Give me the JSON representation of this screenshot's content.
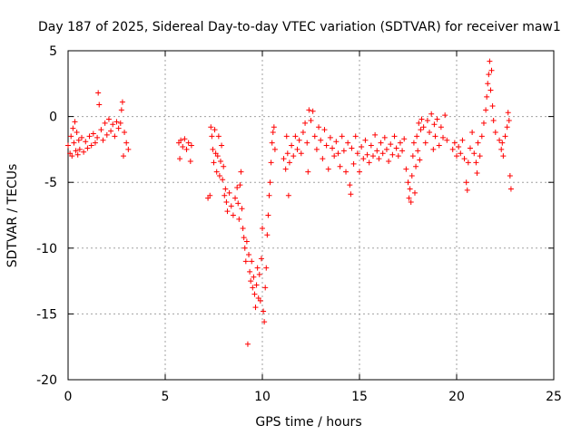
{
  "chart_data": {
    "type": "scatter",
    "title": "Day 187 of 2025, Sidereal Day-to-day VTEC variation (SDTVAR) for receiver maw1",
    "xlabel": "GPS time / hours",
    "ylabel": "SDTVAR / TECUs",
    "xlim": [
      0,
      25
    ],
    "ylim": [
      -20,
      5
    ],
    "xticks": [
      0,
      5,
      10,
      15,
      20,
      25
    ],
    "yticks": [
      5,
      0,
      -5,
      -10,
      -15,
      -20
    ],
    "grid": true,
    "marker": "plus",
    "color": "#ff0000",
    "series": [
      {
        "name": "maw1",
        "points": [
          [
            0.0,
            -2.2
          ],
          [
            0.1,
            -2.8
          ],
          [
            0.15,
            -1.5
          ],
          [
            0.2,
            -3.0
          ],
          [
            0.25,
            -0.9
          ],
          [
            0.3,
            -2.0
          ],
          [
            0.35,
            -0.4
          ],
          [
            0.4,
            -2.6
          ],
          [
            0.45,
            -1.2
          ],
          [
            0.5,
            -2.9
          ],
          [
            0.55,
            -1.8
          ],
          [
            0.6,
            -2.5
          ],
          [
            0.7,
            -1.6
          ],
          [
            0.8,
            -2.7
          ],
          [
            0.9,
            -1.9
          ],
          [
            1.0,
            -2.4
          ],
          [
            1.1,
            -1.5
          ],
          [
            1.2,
            -2.2
          ],
          [
            1.3,
            -1.3
          ],
          [
            1.4,
            -2.0
          ],
          [
            1.5,
            -1.6
          ],
          [
            1.55,
            1.8
          ],
          [
            1.6,
            0.9
          ],
          [
            1.7,
            -1.0
          ],
          [
            1.8,
            -1.8
          ],
          [
            1.9,
            -0.5
          ],
          [
            2.0,
            -1.4
          ],
          [
            2.1,
            -0.2
          ],
          [
            2.2,
            -1.1
          ],
          [
            2.3,
            -0.6
          ],
          [
            2.4,
            -1.5
          ],
          [
            2.5,
            -0.4
          ],
          [
            2.6,
            -0.9
          ],
          [
            2.7,
            -0.5
          ],
          [
            2.75,
            0.5
          ],
          [
            2.8,
            1.1
          ],
          [
            2.85,
            -3.0
          ],
          [
            2.9,
            -1.2
          ],
          [
            3.0,
            -2.0
          ],
          [
            3.1,
            -2.5
          ],
          [
            5.7,
            -2.0
          ],
          [
            5.75,
            -3.2
          ],
          [
            5.8,
            -1.8
          ],
          [
            5.9,
            -2.3
          ],
          [
            6.0,
            -1.7
          ],
          [
            6.1,
            -2.5
          ],
          [
            6.2,
            -2.0
          ],
          [
            6.3,
            -3.4
          ],
          [
            6.35,
            -2.2
          ],
          [
            7.2,
            -6.2
          ],
          [
            7.3,
            -6.0
          ],
          [
            7.35,
            -0.8
          ],
          [
            7.4,
            -1.5
          ],
          [
            7.45,
            -2.5
          ],
          [
            7.5,
            -3.5
          ],
          [
            7.55,
            -1.0
          ],
          [
            7.6,
            -2.8
          ],
          [
            7.65,
            -4.2
          ],
          [
            7.7,
            -3.0
          ],
          [
            7.75,
            -1.5
          ],
          [
            7.8,
            -4.5
          ],
          [
            7.85,
            -3.4
          ],
          [
            7.9,
            -2.2
          ],
          [
            7.95,
            -4.8
          ],
          [
            8.0,
            -3.8
          ],
          [
            8.05,
            -6.0
          ],
          [
            8.1,
            -5.5
          ],
          [
            8.15,
            -6.5
          ],
          [
            8.2,
            -7.2
          ],
          [
            8.3,
            -5.8
          ],
          [
            8.4,
            -6.8
          ],
          [
            8.5,
            -7.5
          ],
          [
            8.6,
            -6.2
          ],
          [
            8.7,
            -5.4
          ],
          [
            8.75,
            -6.6
          ],
          [
            8.8,
            -7.8
          ],
          [
            8.85,
            -5.2
          ],
          [
            8.9,
            -4.2
          ],
          [
            8.95,
            -7.0
          ],
          [
            9.0,
            -8.5
          ],
          [
            9.05,
            -9.2
          ],
          [
            9.1,
            -10.0
          ],
          [
            9.15,
            -11.0
          ],
          [
            9.2,
            -9.5
          ],
          [
            9.25,
            -17.3
          ],
          [
            9.3,
            -10.5
          ],
          [
            9.35,
            -11.8
          ],
          [
            9.4,
            -12.5
          ],
          [
            9.45,
            -11.0
          ],
          [
            9.5,
            -13.0
          ],
          [
            9.55,
            -12.2
          ],
          [
            9.6,
            -13.5
          ],
          [
            9.65,
            -14.5
          ],
          [
            9.7,
            -12.8
          ],
          [
            9.75,
            -11.5
          ],
          [
            9.8,
            -13.8
          ],
          [
            9.85,
            -12.0
          ],
          [
            9.9,
            -14.0
          ],
          [
            9.95,
            -10.8
          ],
          [
            10.0,
            -8.5
          ],
          [
            10.05,
            -14.8
          ],
          [
            10.1,
            -15.6
          ],
          [
            10.15,
            -13.0
          ],
          [
            10.2,
            -11.5
          ],
          [
            10.25,
            -9.0
          ],
          [
            10.3,
            -7.5
          ],
          [
            10.35,
            -6.0
          ],
          [
            10.4,
            -5.0
          ],
          [
            10.45,
            -3.5
          ],
          [
            10.5,
            -2.0
          ],
          [
            10.55,
            -1.2
          ],
          [
            10.6,
            -0.8
          ],
          [
            10.65,
            -2.5
          ],
          [
            11.1,
            -3.2
          ],
          [
            11.2,
            -4.0
          ],
          [
            11.25,
            -1.5
          ],
          [
            11.3,
            -2.8
          ],
          [
            11.35,
            -6.0
          ],
          [
            11.4,
            -3.5
          ],
          [
            11.5,
            -2.2
          ],
          [
            11.6,
            -3.0
          ],
          [
            11.7,
            -1.5
          ],
          [
            11.8,
            -2.5
          ],
          [
            11.9,
            -1.8
          ],
          [
            12.0,
            -2.8
          ],
          [
            12.1,
            -1.2
          ],
          [
            12.2,
            -0.5
          ],
          [
            12.3,
            -2.0
          ],
          [
            12.35,
            -4.2
          ],
          [
            12.4,
            0.5
          ],
          [
            12.5,
            -0.3
          ],
          [
            12.6,
            0.4
          ],
          [
            12.7,
            -1.5
          ],
          [
            12.8,
            -2.5
          ],
          [
            12.9,
            -0.8
          ],
          [
            13.0,
            -1.8
          ],
          [
            13.1,
            -3.2
          ],
          [
            13.2,
            -1.0
          ],
          [
            13.3,
            -2.2
          ],
          [
            13.4,
            -4.0
          ],
          [
            13.5,
            -1.6
          ],
          [
            13.6,
            -2.4
          ],
          [
            13.7,
            -3.0
          ],
          [
            13.8,
            -1.9
          ],
          [
            13.9,
            -2.8
          ],
          [
            14.0,
            -3.8
          ],
          [
            14.1,
            -1.5
          ],
          [
            14.2,
            -2.6
          ],
          [
            14.3,
            -4.2
          ],
          [
            14.4,
            -2.0
          ],
          [
            14.5,
            -5.2
          ],
          [
            14.55,
            -5.9
          ],
          [
            14.6,
            -2.4
          ],
          [
            14.7,
            -3.6
          ],
          [
            14.8,
            -1.5
          ],
          [
            14.9,
            -2.8
          ],
          [
            15.0,
            -4.2
          ],
          [
            15.1,
            -2.3
          ],
          [
            15.2,
            -3.2
          ],
          [
            15.3,
            -1.8
          ],
          [
            15.4,
            -2.9
          ],
          [
            15.5,
            -3.5
          ],
          [
            15.6,
            -2.2
          ],
          [
            15.7,
            -3.0
          ],
          [
            15.8,
            -1.4
          ],
          [
            15.9,
            -2.6
          ],
          [
            16.0,
            -3.2
          ],
          [
            16.1,
            -2.0
          ],
          [
            16.2,
            -2.8
          ],
          [
            16.3,
            -1.6
          ],
          [
            16.4,
            -2.5
          ],
          [
            16.5,
            -3.4
          ],
          [
            16.6,
            -2.1
          ],
          [
            16.7,
            -2.9
          ],
          [
            16.8,
            -1.5
          ],
          [
            16.9,
            -2.4
          ],
          [
            17.0,
            -3.0
          ],
          [
            17.1,
            -2.0
          ],
          [
            17.2,
            -2.6
          ],
          [
            17.3,
            -1.7
          ],
          [
            17.4,
            -4.0
          ],
          [
            17.5,
            -5.0
          ],
          [
            17.55,
            -6.2
          ],
          [
            17.6,
            -5.5
          ],
          [
            17.65,
            -6.5
          ],
          [
            17.7,
            -4.5
          ],
          [
            17.75,
            -3.0
          ],
          [
            17.8,
            -2.0
          ],
          [
            17.85,
            -5.8
          ],
          [
            17.9,
            -3.8
          ],
          [
            17.95,
            -1.5
          ],
          [
            18.0,
            -2.6
          ],
          [
            18.05,
            -0.5
          ],
          [
            18.1,
            -3.3
          ],
          [
            18.15,
            -1.0
          ],
          [
            18.2,
            -0.2
          ],
          [
            18.3,
            -0.8
          ],
          [
            18.4,
            -2.0
          ],
          [
            18.5,
            -0.3
          ],
          [
            18.6,
            -1.2
          ],
          [
            18.7,
            0.2
          ],
          [
            18.8,
            -2.5
          ],
          [
            18.85,
            -0.6
          ],
          [
            18.9,
            -1.5
          ],
          [
            19.0,
            -0.2
          ],
          [
            19.1,
            -2.2
          ],
          [
            19.2,
            -0.8
          ],
          [
            19.3,
            -1.6
          ],
          [
            19.4,
            0.1
          ],
          [
            19.5,
            -1.8
          ],
          [
            19.8,
            -2.5
          ],
          [
            19.9,
            -2.0
          ],
          [
            20.0,
            -3.0
          ],
          [
            20.1,
            -2.3
          ],
          [
            20.2,
            -2.8
          ],
          [
            20.3,
            -1.8
          ],
          [
            20.4,
            -3.2
          ],
          [
            20.5,
            -5.0
          ],
          [
            20.55,
            -5.6
          ],
          [
            20.6,
            -3.5
          ],
          [
            20.7,
            -2.4
          ],
          [
            20.8,
            -1.2
          ],
          [
            20.9,
            -2.8
          ],
          [
            21.0,
            -3.5
          ],
          [
            21.05,
            -4.3
          ],
          [
            21.1,
            -2.0
          ],
          [
            21.2,
            -3.0
          ],
          [
            21.3,
            -1.5
          ],
          [
            21.4,
            -0.5
          ],
          [
            21.5,
            0.5
          ],
          [
            21.55,
            1.5
          ],
          [
            21.6,
            2.5
          ],
          [
            21.65,
            3.2
          ],
          [
            21.7,
            4.2
          ],
          [
            21.75,
            2.0
          ],
          [
            21.8,
            3.5
          ],
          [
            21.85,
            0.8
          ],
          [
            21.9,
            -0.3
          ],
          [
            22.0,
            -1.2
          ],
          [
            22.2,
            -1.8
          ],
          [
            22.3,
            -2.5
          ],
          [
            22.35,
            -2.0
          ],
          [
            22.4,
            -3.0
          ],
          [
            22.5,
            -1.5
          ],
          [
            22.6,
            -0.8
          ],
          [
            22.65,
            0.3
          ],
          [
            22.7,
            -0.3
          ],
          [
            22.75,
            -4.5
          ],
          [
            22.8,
            -5.5
          ]
        ]
      }
    ]
  }
}
